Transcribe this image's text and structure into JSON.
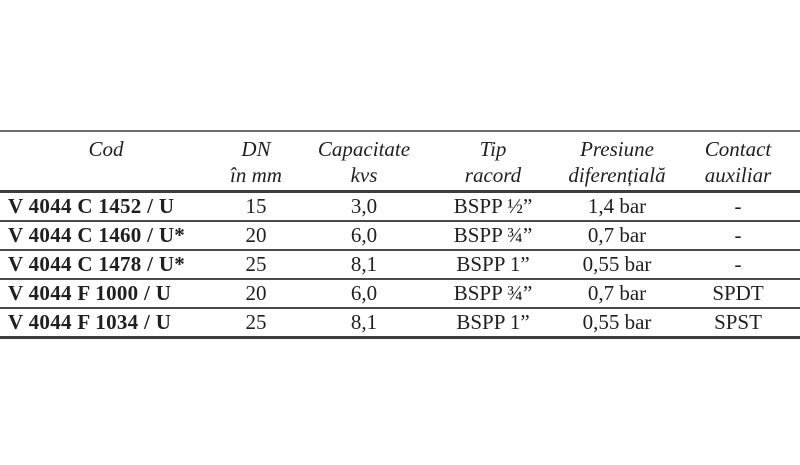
{
  "table": {
    "columns": [
      {
        "line1": "Cod",
        "line2": ""
      },
      {
        "line1": "DN",
        "line2": "în mm"
      },
      {
        "line1": "Capacitate",
        "line2": "kvs"
      },
      {
        "line1": "Tip",
        "line2": "racord"
      },
      {
        "line1": "Presiune",
        "line2": "diferențială"
      },
      {
        "line1": "Contact",
        "line2": "auxiliar"
      }
    ],
    "rows": [
      {
        "cod": "V 4044 C 1452 / U",
        "dn": "15",
        "kvs": "3,0",
        "tip": "BSPP ½”",
        "presiune": "1,4 bar",
        "contact": "-"
      },
      {
        "cod": "V 4044 C 1460 / U*",
        "dn": "20",
        "kvs": "6,0",
        "tip": "BSPP ¾”",
        "presiune": "0,7 bar",
        "contact": "-"
      },
      {
        "cod": "V 4044 C 1478 / U*",
        "dn": "25",
        "kvs": "8,1",
        "tip": "BSPP 1”",
        "presiune": "0,55 bar",
        "contact": "-"
      },
      {
        "cod": "V 4044 F 1000 / U",
        "dn": "20",
        "kvs": "6,0",
        "tip": "BSPP ¾”",
        "presiune": "0,7 bar",
        "contact": "SPDT"
      },
      {
        "cod": "V 4044 F 1034 / U",
        "dn": "25",
        "kvs": "8,1",
        "tip": "BSPP 1”",
        "presiune": "0,55 bar",
        "contact": "SPST"
      }
    ],
    "colors": {
      "text": "#1f1f1f",
      "rule_dark": "#3c3c3c",
      "rule_mid": "#4a4a4a",
      "rule_light": "#6e6e6e",
      "background": "#ffffff"
    }
  }
}
